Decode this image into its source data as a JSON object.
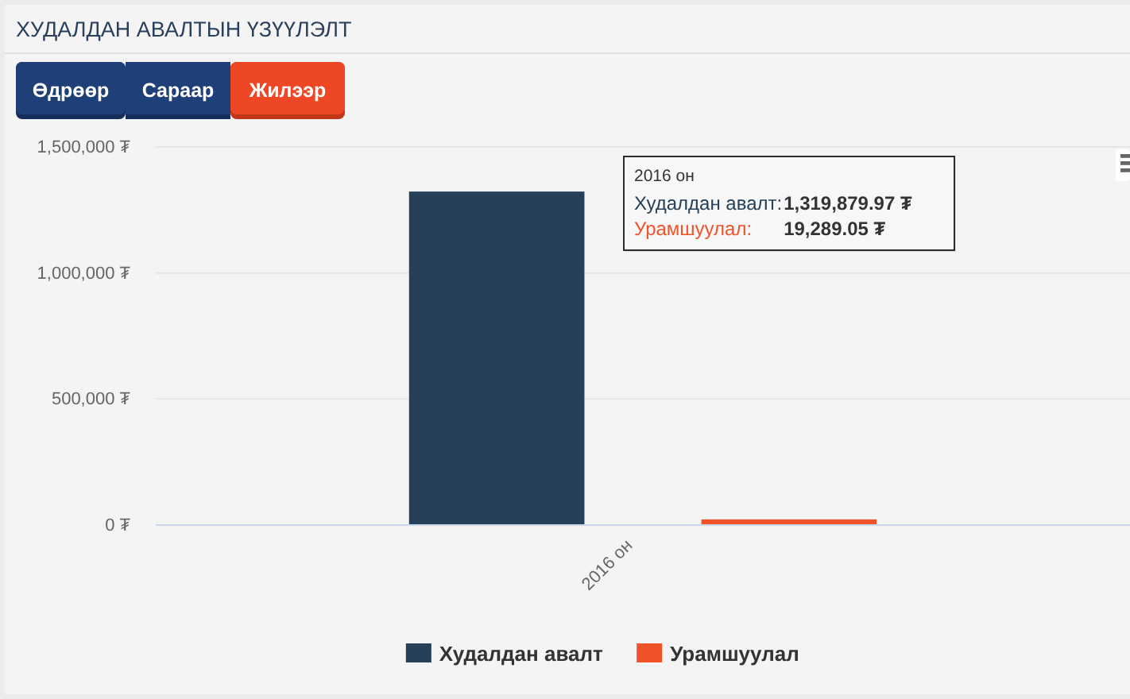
{
  "chart_data": {
    "type": "bar",
    "title": "ХУДАЛДАН АВАЛТЫН ҮЗҮҮЛЭЛТ",
    "categories": [
      "2016 он"
    ],
    "series": [
      {
        "name": "Худалдан авалт",
        "color": "#27405a",
        "values": [
          1319879.97
        ]
      },
      {
        "name": "Урамшуулал",
        "color": "#f0522a",
        "values": [
          19289.05
        ]
      }
    ],
    "ylim": [
      0,
      1500000
    ],
    "yticks": [
      {
        "value": 0,
        "label": "0 ₮"
      },
      {
        "value": 500000,
        "label": "500,000 ₮"
      },
      {
        "value": 1000000,
        "label": "1,000,000 ₮"
      },
      {
        "value": 1500000,
        "label": "1,500,000 ₮"
      }
    ],
    "grid": "y",
    "legend": "bottom",
    "annotations": [
      "Өдрөөр",
      "Сараар",
      "Жилээр",
      "2016 он",
      "Худалдан авалт:1,319,879.97 ₮",
      "Урамшуулал: 19,289.05 ₮"
    ]
  }
}
